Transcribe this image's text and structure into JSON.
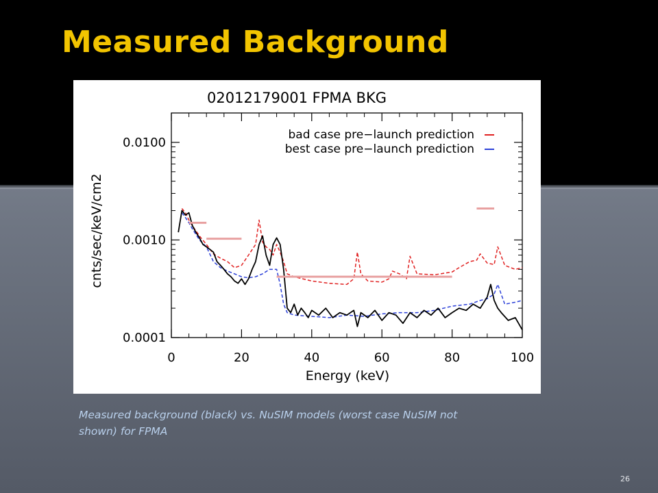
{
  "slide": {
    "title": "Measured Background",
    "caption": "Measured background (black) vs. NuSIM models (worst case NuSIM not shown) for FPMA",
    "number": "26"
  },
  "colors": {
    "title": "#f2c400",
    "top_band": "#000000",
    "caption": "#b9d0ec",
    "measured": "#000000",
    "bad_case": "#e02020",
    "best_case": "#2a3fd8",
    "prior_estimate": "#e8a0a0"
  },
  "chart_data": {
    "type": "line",
    "title": "02012179001 FPMA BKG",
    "xlabel": "Energy (keV)",
    "ylabel": "cnts/sec/keV/cm2",
    "xlim": [
      0,
      100
    ],
    "ylim": [
      0.0001,
      0.02
    ],
    "yscale": "log",
    "xticks": [
      0,
      20,
      40,
      60,
      80,
      100
    ],
    "xtick_labels": [
      "0",
      "20",
      "40",
      "60",
      "80",
      "100"
    ],
    "yticks": [
      0.0001,
      0.001,
      0.01
    ],
    "ytick_labels": [
      "0.0001",
      "0.0010",
      "0.0100"
    ],
    "legend": {
      "position": "top-right",
      "entries": [
        {
          "label": "bad case pre−launch prediction",
          "color": "#e02020"
        },
        {
          "label": "best case pre−launch prediction",
          "color": "#2a3fd8"
        }
      ]
    },
    "series": [
      {
        "name": "bad case pre−launch prediction",
        "color": "#e02020",
        "style": "dashed",
        "x": [
          3,
          4,
          5,
          6,
          8,
          10,
          12,
          14,
          16,
          18,
          20,
          22,
          24,
          25,
          26,
          27,
          28,
          29,
          30,
          31,
          32,
          33,
          35,
          40,
          45,
          50,
          52,
          53,
          54,
          56,
          60,
          62,
          63,
          65,
          67,
          68,
          70,
          75,
          80,
          82,
          85,
          87,
          88,
          90,
          92,
          93,
          95,
          98,
          100
        ],
        "y": [
          0.0021,
          0.0019,
          0.0016,
          0.0014,
          0.0011,
          0.0009,
          0.00072,
          0.00065,
          0.0006,
          0.00052,
          0.00055,
          0.0007,
          0.0009,
          0.0016,
          0.00095,
          0.00085,
          0.0008,
          0.0007,
          0.0009,
          0.00075,
          0.0006,
          0.00045,
          0.00042,
          0.00038,
          0.00036,
          0.00035,
          0.0004,
          0.00075,
          0.00045,
          0.00038,
          0.00037,
          0.0004,
          0.00048,
          0.00045,
          0.0004,
          0.00068,
          0.00045,
          0.00044,
          0.00047,
          0.00052,
          0.0006,
          0.00062,
          0.00072,
          0.00058,
          0.00056,
          0.00085,
          0.00055,
          0.0005,
          0.00052
        ]
      },
      {
        "name": "best case pre−launch prediction",
        "color": "#2a3fd8",
        "style": "dashed",
        "x": [
          3,
          4,
          5,
          6,
          8,
          10,
          12,
          14,
          16,
          18,
          20,
          22,
          24,
          26,
          28,
          30,
          31,
          32,
          33,
          35,
          40,
          45,
          50,
          55,
          60,
          65,
          70,
          75,
          80,
          85,
          88,
          90,
          92,
          93,
          95,
          98,
          100
        ],
        "y": [
          0.0019,
          0.0017,
          0.0015,
          0.0013,
          0.001,
          0.00085,
          0.0006,
          0.00052,
          0.00048,
          0.00045,
          0.00042,
          0.00041,
          0.00042,
          0.00045,
          0.0005,
          0.0005,
          0.00035,
          0.00022,
          0.00018,
          0.00017,
          0.000165,
          0.00016,
          0.00017,
          0.000165,
          0.000175,
          0.00018,
          0.00018,
          0.00019,
          0.00021,
          0.00022,
          0.00024,
          0.00025,
          0.00028,
          0.00035,
          0.00022,
          0.00023,
          0.00024
        ]
      },
      {
        "name": "",
        "color": "#000000",
        "style": "solid",
        "x": [
          2,
          3,
          4,
          5,
          6,
          7,
          8,
          9,
          10,
          11,
          12,
          13,
          14,
          15,
          16,
          17,
          18,
          19,
          20,
          21,
          22,
          23,
          24,
          25,
          26,
          27,
          28,
          29,
          30,
          31,
          32,
          33,
          34,
          35,
          36,
          37,
          38,
          39,
          40,
          42,
          44,
          46,
          48,
          50,
          52,
          53,
          54,
          56,
          58,
          60,
          62,
          64,
          66,
          68,
          70,
          72,
          74,
          76,
          78,
          80,
          82,
          84,
          86,
          88,
          90,
          91,
          92,
          93,
          94,
          96,
          98,
          100
        ],
        "y": [
          0.0012,
          0.002,
          0.0018,
          0.0019,
          0.0014,
          0.0012,
          0.00105,
          0.0009,
          0.00085,
          0.0008,
          0.00075,
          0.0006,
          0.00055,
          0.0005,
          0.00045,
          0.00042,
          0.00038,
          0.00036,
          0.0004,
          0.00035,
          0.0004,
          0.0005,
          0.0006,
          0.0009,
          0.0011,
          0.0007,
          0.00055,
          0.0009,
          0.00105,
          0.0009,
          0.0005,
          0.0002,
          0.00018,
          0.00022,
          0.00017,
          0.0002,
          0.00018,
          0.00016,
          0.00019,
          0.00017,
          0.0002,
          0.00016,
          0.00018,
          0.00017,
          0.00019,
          0.00013,
          0.00018,
          0.00016,
          0.00019,
          0.00015,
          0.00018,
          0.00017,
          0.00014,
          0.00018,
          0.00016,
          0.00019,
          0.00017,
          0.0002,
          0.00016,
          0.00018,
          0.0002,
          0.00019,
          0.00022,
          0.0002,
          0.00026,
          0.00035,
          0.00024,
          0.0002,
          0.00018,
          0.00015,
          0.00016,
          0.00012
        ]
      },
      {
        "name": "",
        "color": "#e8a0a0",
        "style": "segments",
        "segments": [
          {
            "x": [
              5,
              10
            ],
            "y": 0.0015
          },
          {
            "x": [
              10,
              20
            ],
            "y": 0.00103
          },
          {
            "x": [
              30,
              80
            ],
            "y": 0.00042
          },
          {
            "x": [
              87,
              92
            ],
            "y": 0.0021
          }
        ]
      }
    ]
  }
}
